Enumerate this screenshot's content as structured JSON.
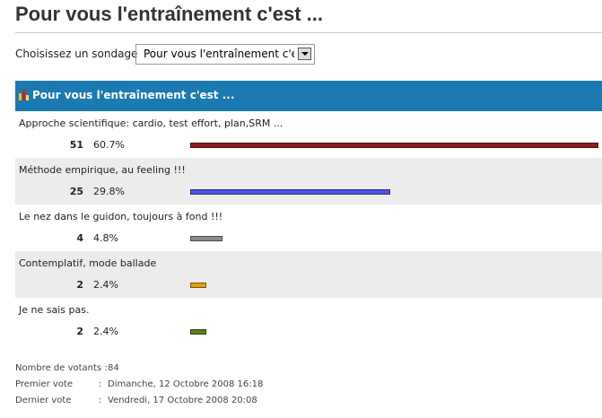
{
  "title": "Pour vous l'entraînement c'est ...",
  "selector": {
    "label": "Choisissez un sondage",
    "selected": "Pour vous l'entraînement c'est"
  },
  "poll": {
    "header": "Pour vous l'entraînement c'est ...",
    "options": [
      {
        "label": "Approche scientifique: cardio, test effort, plan,SRM ...",
        "votes": 51,
        "percent": 60.7,
        "percent_label": "60.7%",
        "color": "#8b1c1c"
      },
      {
        "label": "Méthode empirique, au feeling !!!",
        "votes": 25,
        "percent": 29.8,
        "percent_label": "29.8%",
        "color": "#5050e0"
      },
      {
        "label": "Le nez dans le guidon, toujours à fond !!!",
        "votes": 4,
        "percent": 4.8,
        "percent_label": "4.8%",
        "color": "#8a8a8a"
      },
      {
        "label": "Contemplatif, mode ballade",
        "votes": 2,
        "percent": 2.4,
        "percent_label": "2.4%",
        "color": "#e0a010"
      },
      {
        "label": "Je ne sais pas.",
        "votes": 2,
        "percent": 2.4,
        "percent_label": "2.4%",
        "color": "#5a7e22"
      }
    ]
  },
  "stats": [
    {
      "label": "Nombre de votants :",
      "value": 84
    },
    {
      "label": "Premier vote",
      "sep": ":",
      "value": "Dimanche, 12 Octobre 2008 16:18"
    },
    {
      "label": "Dernier vote",
      "sep": ":",
      "value": "Vendredi, 17 Octobre 2008 20:08"
    }
  ]
}
